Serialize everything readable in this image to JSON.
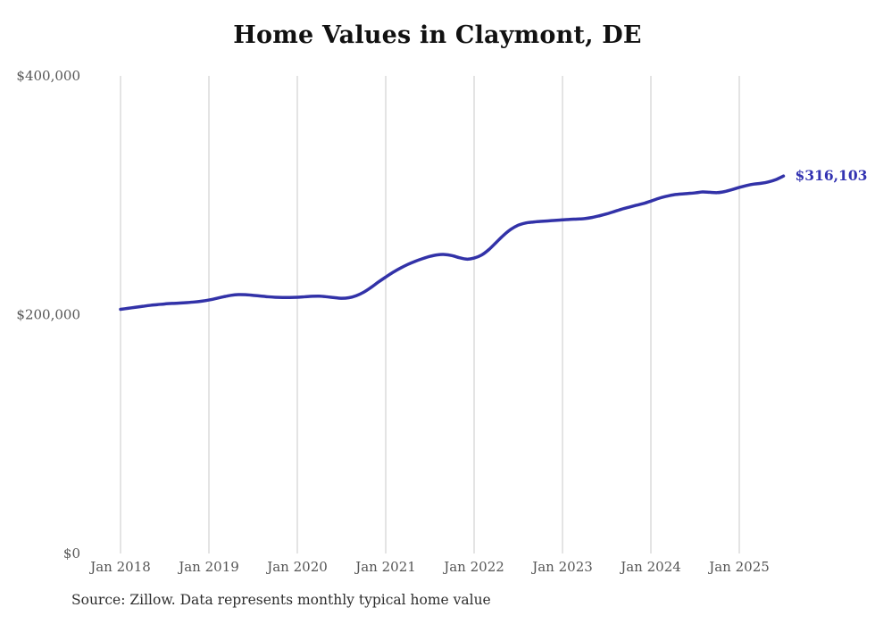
{
  "page": {
    "title": "Home Values in Claymont, DE",
    "source_note": "Source: Zillow. Data represents monthly typical home value"
  },
  "chart_data": {
    "type": "line",
    "title": "Home Values in Claymont, DE",
    "source": "Source: Zillow. Data represents monthly typical home value",
    "x_start": "2018-01",
    "x_end": "2025-07",
    "x_frequency": "monthly",
    "x_tick_labels": [
      "Jan 2018",
      "Jan 2019",
      "Jan 2020",
      "Jan 2021",
      "Jan 2022",
      "Jan 2023",
      "Jan 2024",
      "Jan 2025"
    ],
    "y_ticks": [
      {
        "label": "$0",
        "value": 0
      },
      {
        "label": "$200,000",
        "value": 200000
      },
      {
        "label": "$400,000",
        "value": 400000
      }
    ],
    "ylim": [
      0,
      400000
    ],
    "grid": "vertical-only",
    "legend": "none",
    "end_label": "$316,103",
    "end_value": 316103,
    "series": [
      {
        "name": "Typical home value",
        "values": [
          204500,
          205300,
          206200,
          207000,
          207800,
          208400,
          209000,
          209400,
          209700,
          210100,
          210600,
          211300,
          212300,
          213600,
          215000,
          216200,
          216800,
          216700,
          216200,
          215600,
          215000,
          214600,
          214400,
          214400,
          214600,
          215000,
          215400,
          215500,
          215000,
          214300,
          213700,
          214200,
          215900,
          218800,
          222800,
          227300,
          231500,
          235500,
          239000,
          242100,
          244700,
          246900,
          248800,
          250100,
          250400,
          249500,
          247700,
          246500,
          247400,
          249900,
          254500,
          260500,
          266500,
          271500,
          275000,
          276800,
          277600,
          278100,
          278500,
          279000,
          279400,
          279800,
          280100,
          280500,
          281400,
          282800,
          284400,
          286300,
          288300,
          290000,
          291600,
          293100,
          295100,
          297300,
          299000,
          300300,
          301000,
          301500,
          302000,
          302800,
          302500,
          302200,
          303100,
          304700,
          306600,
          308200,
          309400,
          310100,
          311300,
          313200,
          316103
        ]
      }
    ],
    "colors": {
      "line": "#3232a8",
      "end_label": "#3333b2",
      "grid": "#c9c9c9",
      "axis_text": "#555555",
      "title_text": "#111111",
      "source_text": "#2e2e2e",
      "background": "#ffffff"
    }
  }
}
